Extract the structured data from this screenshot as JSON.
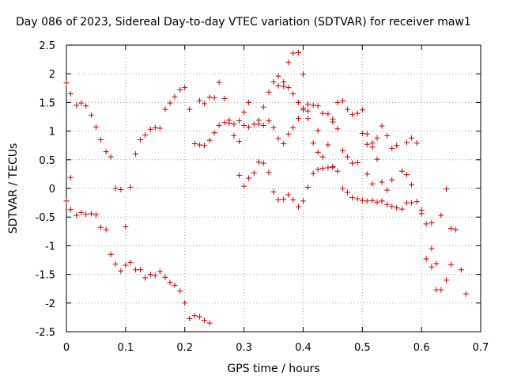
{
  "chart_data": {
    "type": "scatter",
    "title": "Day 086 of 2023, Sidereal Day-to-day VTEC variation (SDTVAR) for receiver maw1",
    "xlabel": "GPS time / hours",
    "ylabel": "SDTVAR / TECUs",
    "xlim": [
      0,
      0.7
    ],
    "ylim": [
      -2.5,
      2.5
    ],
    "xticks": [
      "0",
      "0.1",
      "0.2",
      "0.3",
      "0.4",
      "0.5",
      "0.6",
      "0.7"
    ],
    "yticks": [
      "2.5",
      "2",
      "1.5",
      "1",
      "0.5",
      "0",
      "-0.5",
      "-1",
      "-1.5",
      "-2",
      "-2.5"
    ],
    "grid": true,
    "marker": "+",
    "color": "#cc0000",
    "series": [
      {
        "name": "SDTVAR",
        "points": [
          [
            0.0,
            1.84
          ],
          [
            0.0,
            -0.22
          ],
          [
            0.007,
            1.65
          ],
          [
            0.007,
            0.19
          ],
          [
            0.007,
            -0.37
          ],
          [
            0.017,
            1.45
          ],
          [
            0.017,
            -0.47
          ],
          [
            0.025,
            1.49
          ],
          [
            0.025,
            -0.42
          ],
          [
            0.033,
            1.44
          ],
          [
            0.033,
            -0.45
          ],
          [
            0.042,
            1.28
          ],
          [
            0.042,
            -0.44
          ],
          [
            0.05,
            1.07
          ],
          [
            0.05,
            -0.46
          ],
          [
            0.058,
            0.85
          ],
          [
            0.058,
            -0.68
          ],
          [
            0.067,
            0.64
          ],
          [
            0.067,
            -0.72
          ],
          [
            0.075,
            0.55
          ],
          [
            0.075,
            -1.15
          ],
          [
            0.083,
            0.0
          ],
          [
            0.083,
            -1.32
          ],
          [
            0.092,
            -0.02
          ],
          [
            0.092,
            -1.44
          ],
          [
            0.1,
            -0.67
          ],
          [
            0.1,
            -1.34
          ],
          [
            0.108,
            0.02
          ],
          [
            0.108,
            -1.29
          ],
          [
            0.117,
            0.6
          ],
          [
            0.117,
            -1.42
          ],
          [
            0.125,
            0.85
          ],
          [
            0.125,
            -1.42
          ],
          [
            0.133,
            0.93
          ],
          [
            0.133,
            -1.56
          ],
          [
            0.142,
            1.03
          ],
          [
            0.142,
            -1.5
          ],
          [
            0.15,
            1.06
          ],
          [
            0.15,
            -1.52
          ],
          [
            0.158,
            1.05
          ],
          [
            0.158,
            -1.45
          ],
          [
            0.167,
            1.38
          ],
          [
            0.167,
            -1.55
          ],
          [
            0.175,
            1.49
          ],
          [
            0.175,
            -1.64
          ],
          [
            0.183,
            1.6
          ],
          [
            0.183,
            -1.69
          ],
          [
            0.192,
            1.72
          ],
          [
            0.192,
            -1.79
          ],
          [
            0.2,
            1.76
          ],
          [
            0.2,
            -2.0
          ],
          [
            0.208,
            1.38
          ],
          [
            0.208,
            -2.27
          ],
          [
            0.217,
            0.78
          ],
          [
            0.217,
            -2.22
          ],
          [
            0.225,
            1.53
          ],
          [
            0.225,
            0.76
          ],
          [
            0.225,
            -2.24
          ],
          [
            0.233,
            1.48
          ],
          [
            0.233,
            0.75
          ],
          [
            0.233,
            -2.3
          ],
          [
            0.242,
            1.59
          ],
          [
            0.242,
            0.84
          ],
          [
            0.242,
            -2.35
          ],
          [
            0.25,
            1.58
          ],
          [
            0.25,
            0.97
          ],
          [
            0.258,
            1.85
          ],
          [
            0.258,
            1.1
          ],
          [
            0.267,
            1.57
          ],
          [
            0.267,
            1.15
          ],
          [
            0.275,
            1.19
          ],
          [
            0.275,
            1.14
          ],
          [
            0.283,
            1.12
          ],
          [
            0.283,
            0.92
          ],
          [
            0.292,
            1.18
          ],
          [
            0.292,
            0.82
          ],
          [
            0.292,
            0.23
          ],
          [
            0.3,
            1.33
          ],
          [
            0.3,
            1.1
          ],
          [
            0.3,
            0.04
          ],
          [
            0.308,
            1.5
          ],
          [
            0.308,
            1.07
          ],
          [
            0.308,
            0.18
          ],
          [
            0.317,
            1.12
          ],
          [
            0.317,
            0.27
          ],
          [
            0.325,
            1.19
          ],
          [
            0.325,
            1.12
          ],
          [
            0.325,
            0.46
          ],
          [
            0.333,
            1.42
          ],
          [
            0.333,
            1.1
          ],
          [
            0.333,
            0.44
          ],
          [
            0.342,
            1.68
          ],
          [
            0.342,
            1.18
          ],
          [
            0.342,
            0.28
          ],
          [
            0.35,
            1.86
          ],
          [
            0.35,
            1.06
          ],
          [
            0.35,
            -0.06
          ],
          [
            0.358,
            1.96
          ],
          [
            0.358,
            1.79
          ],
          [
            0.358,
            0.87
          ],
          [
            0.358,
            -0.2
          ],
          [
            0.367,
            1.86
          ],
          [
            0.367,
            1.78
          ],
          [
            0.367,
            0.78
          ],
          [
            0.367,
            -0.19
          ],
          [
            0.375,
            2.2
          ],
          [
            0.375,
            1.76
          ],
          [
            0.375,
            0.95
          ],
          [
            0.375,
            -0.11
          ],
          [
            0.383,
            2.36
          ],
          [
            0.383,
            1.65
          ],
          [
            0.383,
            1.06
          ],
          [
            0.383,
            -0.2
          ],
          [
            0.392,
            2.37
          ],
          [
            0.392,
            1.5
          ],
          [
            0.392,
            1.22
          ],
          [
            0.392,
            -0.32
          ],
          [
            0.4,
            1.99
          ],
          [
            0.4,
            1.4
          ],
          [
            0.4,
            1.37
          ],
          [
            0.4,
            -0.22
          ],
          [
            0.408,
            1.47
          ],
          [
            0.408,
            1.35
          ],
          [
            0.408,
            1.22
          ],
          [
            0.408,
            0.02
          ],
          [
            0.417,
            1.45
          ],
          [
            0.417,
            0.79
          ],
          [
            0.417,
            0.26
          ],
          [
            0.425,
            1.44
          ],
          [
            0.425,
            1.01
          ],
          [
            0.425,
            0.63
          ],
          [
            0.425,
            0.33
          ],
          [
            0.433,
            1.31
          ],
          [
            0.433,
            0.55
          ],
          [
            0.433,
            0.35
          ],
          [
            0.442,
            1.3
          ],
          [
            0.442,
            0.76
          ],
          [
            0.442,
            0.36
          ],
          [
            0.45,
            1.21
          ],
          [
            0.45,
            1.16
          ],
          [
            0.45,
            0.38
          ],
          [
            0.45,
            0.37
          ],
          [
            0.458,
            1.5
          ],
          [
            0.458,
            1.04
          ],
          [
            0.458,
            0.3
          ],
          [
            0.467,
            1.53
          ],
          [
            0.467,
            0.66
          ],
          [
            0.467,
            0.0
          ],
          [
            0.475,
            1.38
          ],
          [
            0.475,
            0.55
          ],
          [
            0.475,
            -0.07
          ],
          [
            0.483,
            1.29
          ],
          [
            0.483,
            0.44
          ],
          [
            0.483,
            -0.16
          ],
          [
            0.492,
            1.31
          ],
          [
            0.492,
            0.45
          ],
          [
            0.492,
            -0.18
          ],
          [
            0.5,
            1.37
          ],
          [
            0.5,
            0.96
          ],
          [
            0.5,
            -0.21
          ],
          [
            0.508,
            0.95
          ],
          [
            0.508,
            0.77
          ],
          [
            0.508,
            0.25
          ],
          [
            0.508,
            -0.22
          ],
          [
            0.517,
            0.79
          ],
          [
            0.517,
            0.72
          ],
          [
            0.517,
            0.08
          ],
          [
            0.517,
            -0.21
          ],
          [
            0.525,
            0.88
          ],
          [
            0.525,
            0.51
          ],
          [
            0.525,
            -0.24
          ],
          [
            0.533,
            1.09
          ],
          [
            0.533,
            0.11
          ],
          [
            0.533,
            -0.22
          ],
          [
            0.542,
            0.92
          ],
          [
            0.542,
            -0.03
          ],
          [
            0.542,
            -0.28
          ],
          [
            0.55,
            0.7
          ],
          [
            0.55,
            0.15
          ],
          [
            0.55,
            -0.31
          ],
          [
            0.558,
            0.75
          ],
          [
            0.558,
            -0.34
          ],
          [
            0.567,
            0.3
          ],
          [
            0.567,
            -0.36
          ],
          [
            0.575,
            0.8
          ],
          [
            0.575,
            0.24
          ],
          [
            0.575,
            -0.25
          ],
          [
            0.583,
            0.88
          ],
          [
            0.583,
            0.06
          ],
          [
            0.583,
            -0.25
          ],
          [
            0.592,
            0.79
          ],
          [
            0.592,
            -0.23
          ],
          [
            0.6,
            -0.38
          ],
          [
            0.6,
            -0.44
          ],
          [
            0.608,
            -0.62
          ],
          [
            0.608,
            -1.23
          ],
          [
            0.617,
            -0.6
          ],
          [
            0.617,
            -1.05
          ],
          [
            0.617,
            -1.37
          ],
          [
            0.625,
            -1.31
          ],
          [
            0.625,
            -1.77
          ],
          [
            0.633,
            -0.47
          ],
          [
            0.633,
            -1.77
          ],
          [
            0.642,
            -0.01
          ],
          [
            0.642,
            -1.6
          ],
          [
            0.65,
            -0.7
          ],
          [
            0.65,
            -1.33
          ],
          [
            0.658,
            -0.72
          ],
          [
            0.667,
            -1.42
          ],
          [
            0.675,
            -1.84
          ]
        ]
      }
    ]
  }
}
